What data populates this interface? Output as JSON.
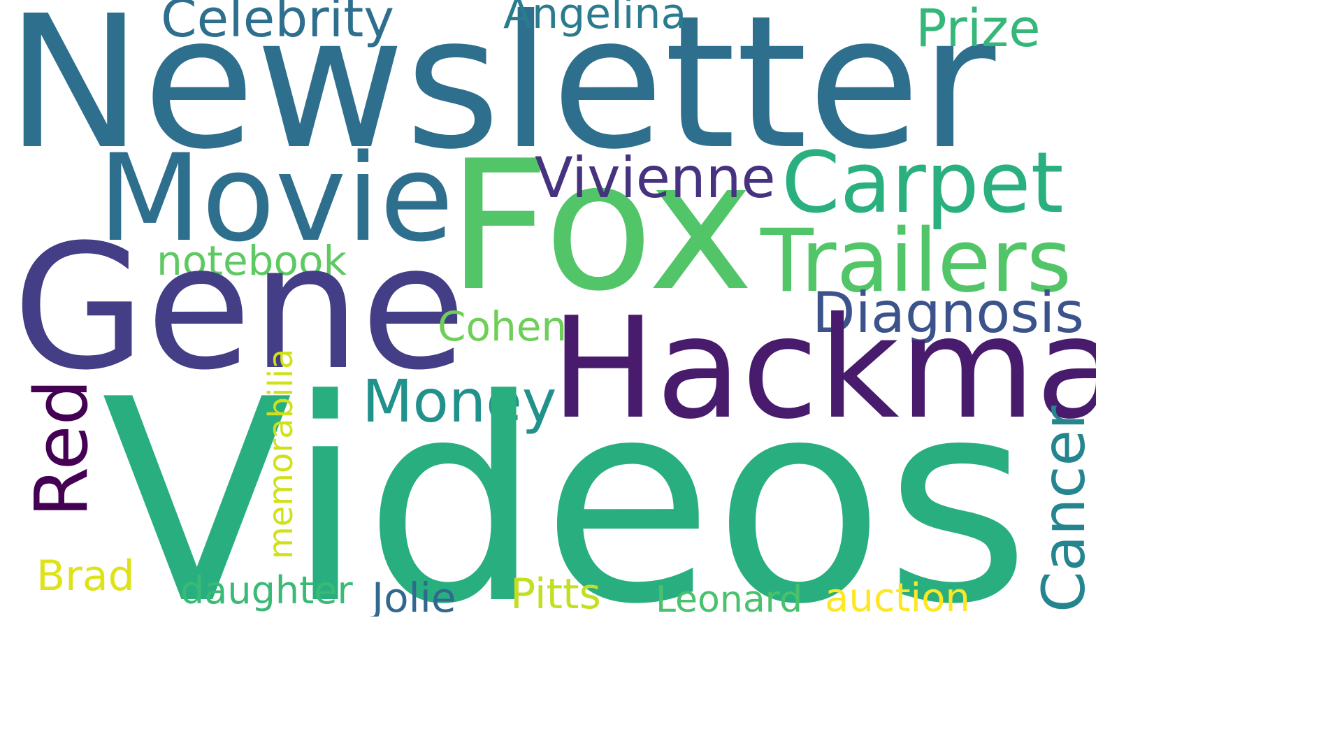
{
  "words": {
    "newsletter": {
      "text": "Newsletter",
      "color": "#2e6f8e"
    },
    "videos": {
      "text": "Videos",
      "color": "#29af7f"
    },
    "gene": {
      "text": "Gene",
      "color": "#433e85"
    },
    "fox": {
      "text": "Fox",
      "color": "#52c569"
    },
    "hackman": {
      "text": "Hackman",
      "color": "#481b6d"
    },
    "movie": {
      "text": "Movie",
      "color": "#2e6f8e"
    },
    "carpet": {
      "text": "Carpet",
      "color": "#2ab07f"
    },
    "trailers": {
      "text": "Trailers",
      "color": "#52c569"
    },
    "vivienne": {
      "text": "Vivienne",
      "color": "#46327e"
    },
    "celebrity": {
      "text": "Celebrity",
      "color": "#2e6f8e"
    },
    "angelina": {
      "text": "Angelina",
      "color": "#287c8e"
    },
    "prize": {
      "text": "Prize",
      "color": "#35b779"
    },
    "notebook": {
      "text": "notebook",
      "color": "#5ec962"
    },
    "diagnosis": {
      "text": "Diagnosis",
      "color": "#3b528b"
    },
    "cohen": {
      "text": "Cohen",
      "color": "#6ece58"
    },
    "money": {
      "text": "Money",
      "color": "#21918c"
    },
    "red": {
      "text": "Red",
      "color": "#440154"
    },
    "memorabilia": {
      "text": "memorabilia",
      "color": "#d0e11c"
    },
    "cancer": {
      "text": "Cancer",
      "color": "#25858e"
    },
    "brad": {
      "text": "Brad",
      "color": "#dde318"
    },
    "daughter": {
      "text": "daughter",
      "color": "#3aba76"
    },
    "jolie": {
      "text": "Jolie",
      "color": "#31688e"
    },
    "pitts": {
      "text": "Pitts",
      "color": "#c2df23"
    },
    "leonard": {
      "text": "Leonard",
      "color": "#4ac16d"
    },
    "auction": {
      "text": "auction",
      "color": "#fde725"
    }
  }
}
